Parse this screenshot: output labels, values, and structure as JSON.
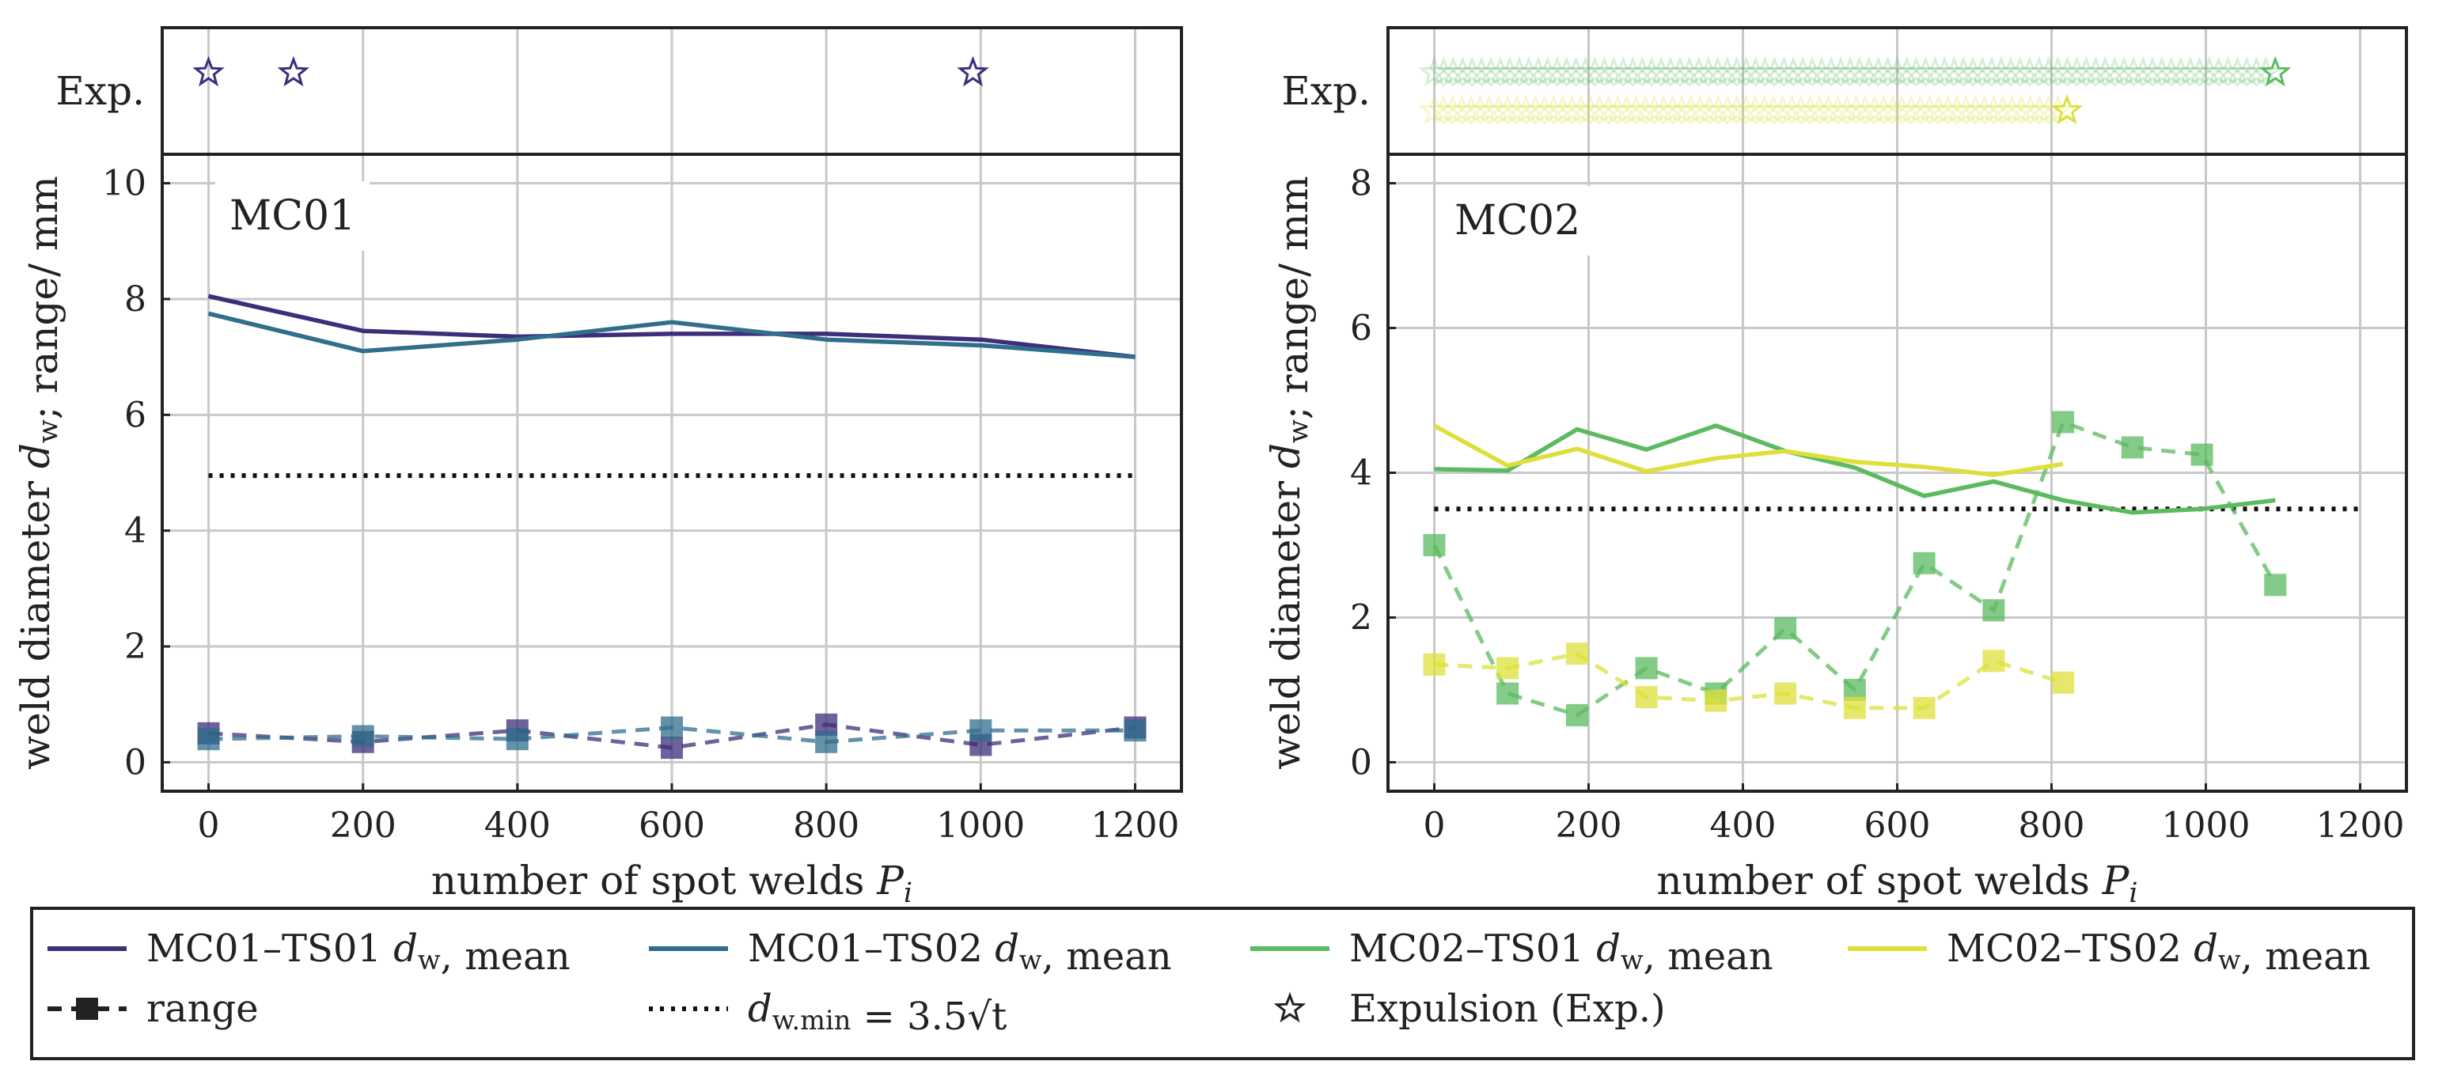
{
  "colors": {
    "mc01_ts01": "#3d2e7a",
    "mc01_ts02": "#2f6e8c",
    "mc02_ts01": "#5cba60",
    "mc02_ts02": "#dde03a",
    "dmin": "#111111",
    "grid": "#c8c8c8",
    "text": "#222222"
  },
  "legend": {
    "items": [
      {
        "key": "mc01_ts01",
        "label": "MC01–TS01 d_w, mean",
        "style": "line"
      },
      {
        "key": "mc01_ts02",
        "label": "MC01–TS02 d_w, mean",
        "style": "line"
      },
      {
        "key": "mc02_ts01",
        "label": "MC02–TS01 d_w, mean",
        "style": "line"
      },
      {
        "key": "mc02_ts02",
        "label": "MC02–TS02 d_w, mean",
        "style": "line"
      },
      {
        "key": "range",
        "label": "range",
        "style": "dashed-square"
      },
      {
        "key": "dmin",
        "label": "d_w.min = 3.5√t",
        "style": "dotted"
      },
      {
        "key": "exp",
        "label": "Expulsion (Exp.)",
        "style": "star"
      }
    ]
  },
  "chart_data": [
    {
      "type": "line",
      "panel_label": "MC01",
      "exp_label": "Exp.",
      "xlabel": "number of spot welds P_i",
      "ylabel": "weld diameter d_w; range/ mm",
      "xlim": [
        -60,
        1260
      ],
      "ylim": [
        -0.5,
        10.5
      ],
      "xticks": [
        0,
        200,
        400,
        600,
        800,
        1000,
        1200
      ],
      "yticks": [
        0,
        2,
        4,
        6,
        8,
        10
      ],
      "dmin": 4.95,
      "dmin_x": [
        0,
        1200
      ],
      "series": [
        {
          "name": "MC01–TS01",
          "color_key": "mc01_ts01",
          "x": [
            0,
            200,
            400,
            600,
            800,
            1000,
            1200
          ],
          "mean": [
            8.05,
            7.45,
            7.35,
            7.4,
            7.4,
            7.3,
            7.0
          ],
          "range": [
            0.5,
            0.35,
            0.55,
            0.25,
            0.65,
            0.3,
            0.6
          ]
        },
        {
          "name": "MC01–TS02",
          "color_key": "mc01_ts02",
          "x": [
            0,
            200,
            400,
            600,
            800,
            1000,
            1200
          ],
          "mean": [
            7.75,
            7.1,
            7.3,
            7.6,
            7.3,
            7.2,
            7.0
          ],
          "range": [
            0.4,
            0.45,
            0.4,
            0.6,
            0.35,
            0.55,
            0.55
          ]
        }
      ],
      "expulsions": [
        {
          "color_key": "mc01_ts01",
          "x": [
            0,
            110,
            990
          ]
        }
      ]
    },
    {
      "type": "line",
      "panel_label": "MC02",
      "exp_label": "Exp.",
      "xlabel": "number of spot welds P_i",
      "ylabel": "weld diameter d_w; range/ mm",
      "xlim": [
        -60,
        1260
      ],
      "ylim": [
        -0.4,
        8.4
      ],
      "xticks": [
        0,
        200,
        400,
        600,
        800,
        1000,
        1200
      ],
      "yticks": [
        0,
        2,
        4,
        6,
        8
      ],
      "dmin": 3.5,
      "dmin_x": [
        0,
        1200
      ],
      "series": [
        {
          "name": "MC02–TS01",
          "color_key": "mc02_ts01",
          "x": [
            0,
            95,
            185,
            275,
            365,
            455,
            545,
            635,
            725,
            815,
            905,
            995,
            1090
          ],
          "mean": [
            4.05,
            4.03,
            4.6,
            4.32,
            4.65,
            4.3,
            4.07,
            3.68,
            3.88,
            3.62,
            3.45,
            3.5,
            3.62
          ],
          "range": [
            3.0,
            0.95,
            0.65,
            1.3,
            0.95,
            1.85,
            1.0,
            2.75,
            2.1,
            4.7,
            4.35,
            4.25,
            2.45
          ]
        },
        {
          "name": "MC02–TS02",
          "color_key": "mc02_ts02",
          "x": [
            0,
            95,
            185,
            275,
            365,
            455,
            545,
            635,
            725,
            815
          ],
          "mean": [
            4.65,
            4.1,
            4.33,
            4.02,
            4.2,
            4.3,
            4.15,
            4.08,
            3.97,
            4.12
          ],
          "range": [
            1.35,
            1.3,
            1.5,
            0.9,
            0.85,
            0.95,
            0.75,
            0.75,
            1.4,
            1.1
          ]
        }
      ],
      "expulsions": [
        {
          "color_key": "mc02_ts01",
          "x_start": 0,
          "x_end": 1090,
          "count": 90
        },
        {
          "color_key": "mc02_ts02",
          "x_start": 0,
          "x_end": 820,
          "count": 70
        }
      ]
    }
  ]
}
